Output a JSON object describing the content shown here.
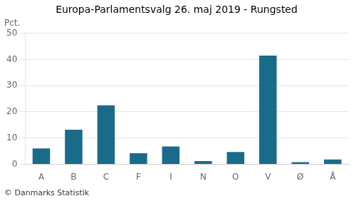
{
  "chart_data": {
    "type": "bar",
    "title": "Europa-Parlamentsvalg 26. maj 2019 - Rungsted",
    "categories": [
      "A",
      "B",
      "C",
      "F",
      "I",
      "N",
      "O",
      "V",
      "Ø",
      "Å"
    ],
    "values": [
      6.0,
      13.2,
      22.5,
      4.2,
      6.8,
      1.2,
      4.7,
      41.5,
      0.8,
      1.8
    ],
    "color": "#1a6b8a",
    "ylabel": "Pct.",
    "footer": "© Danmarks Statistik",
    "ylim": [
      0,
      50
    ],
    "yticks": [
      0,
      10,
      20,
      30,
      40,
      50
    ],
    "grid": true
  }
}
